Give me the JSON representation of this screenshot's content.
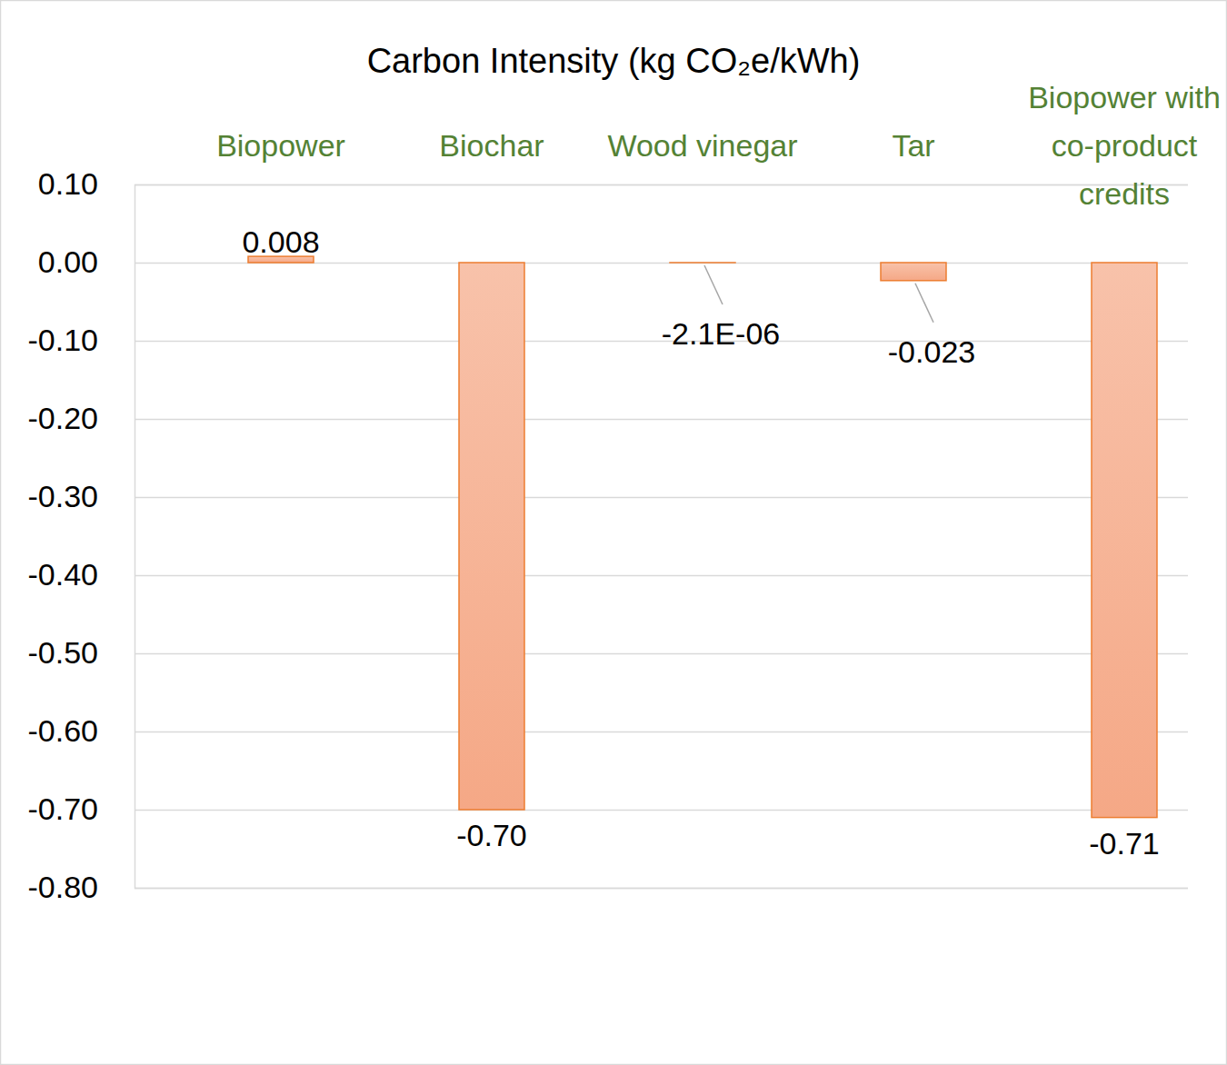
{
  "chart_data": {
    "type": "bar",
    "title": "Carbon Intensity (kg CO₂e/kWh)",
    "categories": [
      "Biopower",
      "Biochar",
      "Wood vinegar",
      "Tar",
      "Biopower with co-product credits"
    ],
    "values": [
      0.008,
      -0.7,
      -2.1e-06,
      -0.023,
      -0.71
    ],
    "value_labels": [
      "0.008",
      "-0.70",
      "-2.1E-06",
      "-0.023",
      "-0.71"
    ],
    "color": "#f5a886",
    "ylim": [
      -0.8,
      0.1
    ],
    "yticks": [
      {
        "value": 0.1,
        "label": "0.10"
      },
      {
        "value": 0,
        "label": "0.00"
      },
      {
        "value": -0.1,
        "label": "-0.10"
      },
      {
        "value": -0.2,
        "label": "-0.20"
      },
      {
        "value": -0.3,
        "label": "-0.30"
      },
      {
        "value": -0.4,
        "label": "-0.40"
      },
      {
        "value": -0.5,
        "label": "-0.50"
      },
      {
        "value": -0.6,
        "label": "-0.60"
      },
      {
        "value": -0.7,
        "label": "-0.70"
      },
      {
        "value": -0.8,
        "label": "-0.80"
      }
    ],
    "grid": true,
    "data_labels": true
  }
}
